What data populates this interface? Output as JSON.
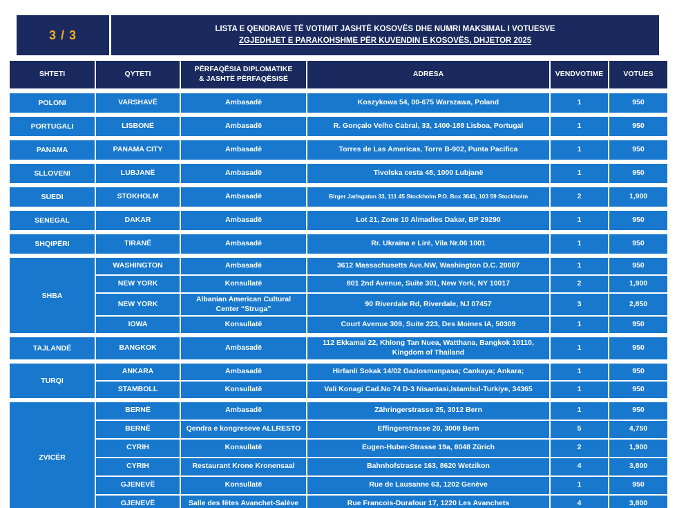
{
  "page": {
    "page_indicator": "3 / 3",
    "title_line1": "LISTA E QENDRAVE TË VOTIMIT JASHTË KOSOVËS DHE NUMRI MAKSIMAL I VOTUESVE",
    "title_line2": "ZGJEDHJET E PARAKOHSHME PËR KUVENDIN E KOSOVËS, DHJETOR 2025"
  },
  "colors": {
    "header_navy": "#1a2a5f",
    "row_blue": "#1878cd",
    "page_indicator_gold": "#f2ae1c",
    "text_white": "#ffffff"
  },
  "table": {
    "columns": [
      "SHTETI",
      "QYTETI",
      "PËRFAQËSIA DIPLOMATIKE\n& JASHTË PËRFAQËSISË",
      "ADRESA",
      "VENDVOTIME",
      "VOTUES"
    ],
    "groups": [
      {
        "country": "POLONI",
        "rows": [
          {
            "city": "VARSHAVË",
            "office": "Ambasadë",
            "address": "Koszykowa 54, 00-675 Warszawa, Poland",
            "vendvotime": "1",
            "votues": "950"
          }
        ]
      },
      {
        "country": "PORTUGALI",
        "rows": [
          {
            "city": "LISBONË",
            "office": "Ambasadë",
            "address": "R. Gonçalo Velho Cabral, 33, 1400-188 Lisboa, Portugal",
            "vendvotime": "1",
            "votues": "950"
          }
        ]
      },
      {
        "country": "PANAMA",
        "rows": [
          {
            "city": "PANAMA CITY",
            "office": "Ambasadë",
            "address": "Torres de Las Americas, Torre B-902, Punta Pacifica",
            "vendvotime": "1",
            "votues": "950"
          }
        ]
      },
      {
        "country": "SLLOVENI",
        "rows": [
          {
            "city": "LUBJANË",
            "office": "Ambasadë",
            "address": "Tivolska cesta 48, 1000 Lubjanë",
            "vendvotime": "1",
            "votues": "950"
          }
        ]
      },
      {
        "country": "SUEDI",
        "rows": [
          {
            "city": "STOKHOLM",
            "office": "Ambasadë",
            "address": "Birger Jarlsgatan 33, 111 45 Stockholm P.O. Box 3643, 103 59  Stockholm",
            "vendvotime": "2",
            "votues": "1,900",
            "small": true
          }
        ]
      },
      {
        "country": "SENEGAL",
        "rows": [
          {
            "city": "DAKAR",
            "office": "Ambasadë",
            "address": "Lot 21, Zone 10 Almadies Dakar, BP 29290",
            "vendvotime": "1",
            "votues": "950"
          }
        ]
      },
      {
        "country": "SHQIPËRI",
        "rows": [
          {
            "city": "TIRANË",
            "office": "Ambasadë",
            "address": "Rr. Ukraina e Lirë, Vila Nr.06 1001",
            "vendvotime": "1",
            "votues": "950"
          }
        ]
      },
      {
        "country": "SHBA",
        "rows": [
          {
            "city": "WASHINGTON",
            "office": "Ambasadë",
            "address": "3612 Massachusetts Ave.NW, Washington D.C. 20007",
            "vendvotime": "1",
            "votues": "950"
          },
          {
            "city": "NEW YORK",
            "office": "Konsullatë",
            "address": "801 2nd Avenue, Suite 301, New York, NY 10017",
            "vendvotime": "2",
            "votues": "1,900"
          },
          {
            "city": "NEW YORK",
            "office": "Albanian American Cultural Center “Struga”",
            "address": "90 Riverdale Rd, Riverdale, NJ 07457",
            "vendvotime": "3",
            "votues": "2,850"
          },
          {
            "city": "IOWA",
            "office": "Konsullatë",
            "address": "Court Avenue 309, Suite 223, Des Moines IA, 50309",
            "vendvotime": "1",
            "votues": "950"
          }
        ]
      },
      {
        "country": "TAJLANDË",
        "rows": [
          {
            "city": "BANGKOK",
            "office": "Ambasadë",
            "address": "112 Ekkamai 22, Khlong Tan Nuea, Watthana, Bangkok 10110, Kingdom of Thailand",
            "vendvotime": "1",
            "votues": "950"
          }
        ]
      },
      {
        "country": "TURQI",
        "rows": [
          {
            "city": "ANKARA",
            "office": "Ambasadë",
            "address": "Hirfanli Sokak 14/02 Gaziosmanpasa; Cankaya; Ankara;",
            "vendvotime": "1",
            "votues": "950"
          },
          {
            "city": "STAMBOLL",
            "office": "Konsullatë",
            "address": "Vali Konagi Cad.No 74 D-3 Nisantasi,Istambul-Turkiye, 34365",
            "vendvotime": "1",
            "votues": "950"
          }
        ]
      },
      {
        "country": "ZVICËR",
        "rows": [
          {
            "city": "BERNË",
            "office": "Ambasadë",
            "address": "Zähringerstrasse 25, 3012 Bern",
            "vendvotime": "1",
            "votues": "950"
          },
          {
            "city": "BERNË",
            "office": "Qendra e kongreseve ALLRESTO",
            "address": "Effingerstrasse 20, 3008 Bern",
            "vendvotime": "5",
            "votues": "4,750"
          },
          {
            "city": "CYRIH",
            "office": "Konsullatë",
            "address": "Eugen-Huber-Strasse 19a, 8048 Zürich",
            "vendvotime": "2",
            "votues": "1,900"
          },
          {
            "city": "CYRIH",
            "office": "Restaurant Krone Kronensaal",
            "address": "Bahnhofstrasse 163, 8620 Wetzikon",
            "vendvotime": "4",
            "votues": "3,800"
          },
          {
            "city": "GJENEVË",
            "office": "Konsullatë",
            "address": "Rue de Lausanne 63, 1202 Genève",
            "vendvotime": "1",
            "votues": "950"
          },
          {
            "city": "GJENEVË",
            "office": "Salle des fêtes Avanchet-Salève",
            "address": "Rue Francois-Durafour 17, 1220 Les Avanchets",
            "vendvotime": "4",
            "votues": "3,800"
          }
        ]
      }
    ]
  }
}
